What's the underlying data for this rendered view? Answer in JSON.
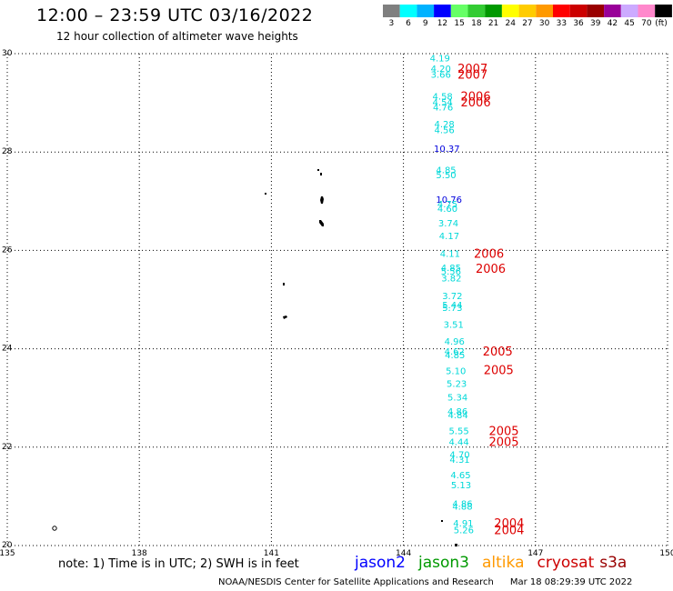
{
  "title": "12:00 – 23:59 UTC 03/16/2022",
  "subtitle": "12 hour collection of altimeter wave heights",
  "color_scale": {
    "unit": "(ft)",
    "steps": [
      {
        "label": "3",
        "color": "#7f7f7f"
      },
      {
        "label": "6",
        "color": "#00ffff"
      },
      {
        "label": "9",
        "color": "#00b2ff"
      },
      {
        "label": "12",
        "color": "#0000ff"
      },
      {
        "label": "15",
        "color": "#66ff66"
      },
      {
        "label": "18",
        "color": "#33cc33"
      },
      {
        "label": "21",
        "color": "#009900"
      },
      {
        "label": "24",
        "color": "#ffff00"
      },
      {
        "label": "27",
        "color": "#ffcc00"
      },
      {
        "label": "30",
        "color": "#ff9900"
      },
      {
        "label": "33",
        "color": "#ff0000"
      },
      {
        "label": "36",
        "color": "#cc0000"
      },
      {
        "label": "39",
        "color": "#990000"
      },
      {
        "label": "42",
        "color": "#990099"
      },
      {
        "label": "45",
        "color": "#ccaaff"
      },
      {
        "label": "70",
        "color": "#ff88cc"
      },
      {
        "label": "",
        "color": "#000000"
      }
    ]
  },
  "note": "note: 1) Time is in UTC; 2) SWH is in feet",
  "missions": [
    {
      "name": "jason2",
      "color": "#0000ff"
    },
    {
      "name": "jason3",
      "color": "#009900"
    },
    {
      "name": "altika",
      "color": "#ff9900"
    },
    {
      "name": "cryosat",
      "color": "#cc0000"
    },
    {
      "name": "s3a",
      "color": "#990000"
    }
  ],
  "footer": {
    "source": "NOAA/NESDIS Center for Satellite Applications and Research",
    "timestamp": "Mar 18 08:29:39 UTC 2022"
  },
  "chart_data": {
    "type": "scatter",
    "xlim": [
      135,
      150
    ],
    "ylim": [
      20,
      30
    ],
    "xticks": [
      135,
      138,
      141,
      144,
      147,
      150
    ],
    "yticks": [
      20,
      22,
      24,
      26,
      28,
      30
    ],
    "grid": true,
    "swh_points": [
      {
        "lon": 144.6,
        "lat": 29.92,
        "label": "4.19",
        "color": "#00d8d8"
      },
      {
        "lon": 144.62,
        "lat": 29.7,
        "label": "4.20",
        "color": "#00d8d8"
      },
      {
        "lon": 144.62,
        "lat": 29.58,
        "label": "3.66",
        "color": "#00d8d8"
      },
      {
        "lon": 144.66,
        "lat": 29.14,
        "label": "4.58",
        "color": "#00d8d8"
      },
      {
        "lon": 144.66,
        "lat": 29.02,
        "label": "4.54",
        "color": "#00d8d8"
      },
      {
        "lon": 144.67,
        "lat": 28.92,
        "label": "4.76",
        "color": "#00d8d8"
      },
      {
        "lon": 144.7,
        "lat": 28.58,
        "label": "4.28",
        "color": "#00d8d8"
      },
      {
        "lon": 144.7,
        "lat": 28.46,
        "label": "4.56",
        "color": "#00d8d8"
      },
      {
        "lon": 144.69,
        "lat": 28.08,
        "label": "10.37",
        "color": "#0000dd"
      },
      {
        "lon": 144.74,
        "lat": 27.64,
        "label": "4.85",
        "color": "#00d8d8"
      },
      {
        "lon": 144.74,
        "lat": 27.54,
        "label": "5.50",
        "color": "#00d8d8"
      },
      {
        "lon": 144.74,
        "lat": 27.04,
        "label": "10.76",
        "color": "#0000dd"
      },
      {
        "lon": 144.77,
        "lat": 26.95,
        "label": "4.75",
        "color": "#00d8d8"
      },
      {
        "lon": 144.77,
        "lat": 26.86,
        "label": "4.60",
        "color": "#00d8d8"
      },
      {
        "lon": 144.79,
        "lat": 26.56,
        "label": "3.74",
        "color": "#00d8d8"
      },
      {
        "lon": 144.81,
        "lat": 26.3,
        "label": "4.17",
        "color": "#00d8d8"
      },
      {
        "lon": 144.83,
        "lat": 25.94,
        "label": "4.11",
        "color": "#00d8d8"
      },
      {
        "lon": 144.85,
        "lat": 25.66,
        "label": "4.85",
        "color": "#00d8d8"
      },
      {
        "lon": 144.85,
        "lat": 25.58,
        "label": "5.56",
        "color": "#00d8d8"
      },
      {
        "lon": 144.86,
        "lat": 25.44,
        "label": "3.82",
        "color": "#00d8d8"
      },
      {
        "lon": 144.88,
        "lat": 25.08,
        "label": "3.72",
        "color": "#00d8d8"
      },
      {
        "lon": 144.88,
        "lat": 24.9,
        "label": "5.44",
        "color": "#00d8d8"
      },
      {
        "lon": 144.88,
        "lat": 24.84,
        "label": "5.73",
        "color": "#00d8d8"
      },
      {
        "lon": 144.91,
        "lat": 24.5,
        "label": "3.51",
        "color": "#00d8d8"
      },
      {
        "lon": 144.93,
        "lat": 24.16,
        "label": "4.96",
        "color": "#00d8d8"
      },
      {
        "lon": 144.93,
        "lat": 23.96,
        "label": "4.62",
        "color": "#00d8d8"
      },
      {
        "lon": 144.94,
        "lat": 23.88,
        "label": "4.85",
        "color": "#00d8d8"
      },
      {
        "lon": 144.96,
        "lat": 23.56,
        "label": "5.10",
        "color": "#00d8d8"
      },
      {
        "lon": 144.98,
        "lat": 23.3,
        "label": "5.23",
        "color": "#00d8d8"
      },
      {
        "lon": 145.0,
        "lat": 23.02,
        "label": "5.34",
        "color": "#00d8d8"
      },
      {
        "lon": 145.0,
        "lat": 22.74,
        "label": "4.86",
        "color": "#00d8d8"
      },
      {
        "lon": 145.01,
        "lat": 22.66,
        "label": "4.84",
        "color": "#00d8d8"
      },
      {
        "lon": 145.03,
        "lat": 22.34,
        "label": "5.55",
        "color": "#00d8d8"
      },
      {
        "lon": 145.03,
        "lat": 22.12,
        "label": "4.44",
        "color": "#00d8d8"
      },
      {
        "lon": 145.05,
        "lat": 21.86,
        "label": "4.70",
        "color": "#00d8d8"
      },
      {
        "lon": 145.05,
        "lat": 21.76,
        "label": "4.31",
        "color": "#00d8d8"
      },
      {
        "lon": 145.07,
        "lat": 21.44,
        "label": "4.65",
        "color": "#00d8d8"
      },
      {
        "lon": 145.08,
        "lat": 21.24,
        "label": "5.13",
        "color": "#00d8d8"
      },
      {
        "lon": 145.11,
        "lat": 20.86,
        "label": "4.86",
        "color": "#00d8d8"
      },
      {
        "lon": 145.11,
        "lat": 20.8,
        "label": "4.88",
        "color": "#00d8d8"
      },
      {
        "lon": 145.13,
        "lat": 20.46,
        "label": "4.91",
        "color": "#00d8d8"
      },
      {
        "lon": 145.14,
        "lat": 20.32,
        "label": "5.26",
        "color": "#00d8d8"
      }
    ],
    "year_labels": [
      {
        "lon": 145.23,
        "lat": 29.7,
        "label": "2007",
        "color": "#dd0000"
      },
      {
        "lon": 145.23,
        "lat": 29.58,
        "label": "2007",
        "color": "#dd0000"
      },
      {
        "lon": 145.3,
        "lat": 29.14,
        "label": "2006",
        "color": "#dd0000"
      },
      {
        "lon": 145.3,
        "lat": 29.02,
        "label": "2006",
        "color": "#dd0000"
      },
      {
        "lon": 145.6,
        "lat": 25.94,
        "label": "2006",
        "color": "#dd0000"
      },
      {
        "lon": 145.64,
        "lat": 25.64,
        "label": "2006",
        "color": "#dd0000"
      },
      {
        "lon": 145.8,
        "lat": 23.96,
        "label": "2005",
        "color": "#dd0000"
      },
      {
        "lon": 145.82,
        "lat": 23.58,
        "label": "2005",
        "color": "#dd0000"
      },
      {
        "lon": 145.94,
        "lat": 22.34,
        "label": "2005",
        "color": "#dd0000"
      },
      {
        "lon": 145.94,
        "lat": 22.12,
        "label": "2005",
        "color": "#dd0000"
      },
      {
        "lon": 146.06,
        "lat": 20.46,
        "label": "2004",
        "color": "#dd0000"
      },
      {
        "lon": 146.06,
        "lat": 20.32,
        "label": "2004",
        "color": "#dd0000"
      }
    ]
  }
}
